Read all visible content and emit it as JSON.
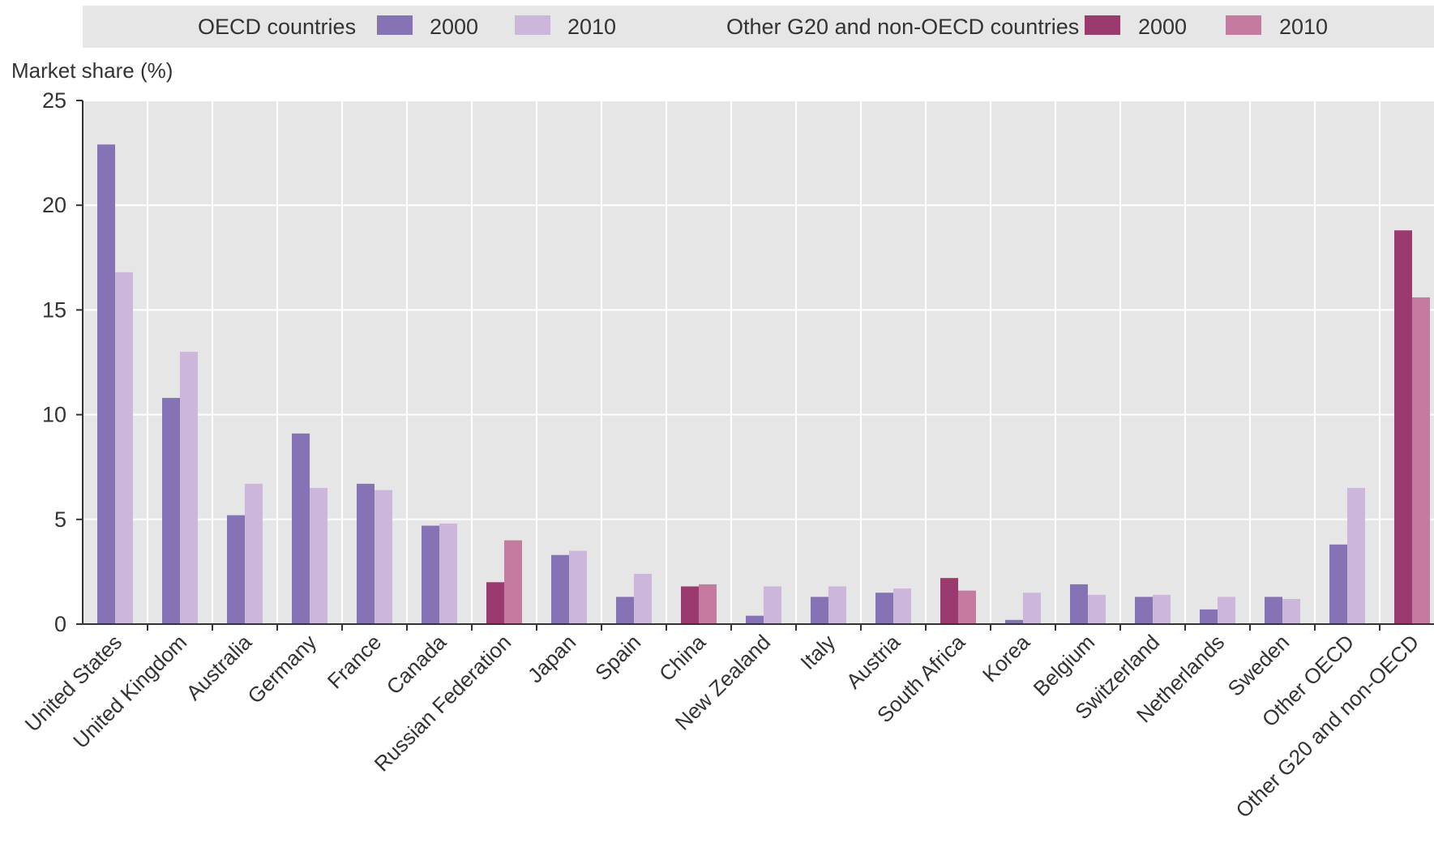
{
  "chart_data": {
    "type": "bar",
    "ylabel": "Market share (%)",
    "ylim": [
      0,
      25
    ],
    "yticks": [
      0,
      5,
      10,
      15,
      20,
      25
    ],
    "grid": true,
    "legend": {
      "placement": "top",
      "groups": [
        {
          "label": "OECD countries",
          "entries": [
            {
              "label": "2000",
              "color": "#8673b6"
            },
            {
              "label": "2010",
              "color": "#cdb6dc"
            }
          ]
        },
        {
          "label": "Other G20 and non-OECD countries",
          "entries": [
            {
              "label": "2000",
              "color": "#9a3a6e"
            },
            {
              "label": "2010",
              "color": "#c57a9f"
            }
          ]
        }
      ]
    },
    "categories": [
      "United States",
      "United Kingdom",
      "Australia",
      "Germany",
      "France",
      "Canada",
      "Russian Federation",
      "Japan",
      "Spain",
      "China",
      "New Zealand",
      "Italy",
      "Austria",
      "South Africa",
      "Korea",
      "Belgium",
      "Switzerland",
      "Netherlands",
      "Sweden",
      "Other OECD",
      "Other G20 and non-OECD"
    ],
    "group": [
      "OECD",
      "OECD",
      "OECD",
      "OECD",
      "OECD",
      "OECD",
      "Other",
      "OECD",
      "OECD",
      "Other",
      "OECD",
      "OECD",
      "OECD",
      "Other",
      "OECD",
      "OECD",
      "OECD",
      "OECD",
      "OECD",
      "OECD",
      "Other"
    ],
    "series": [
      {
        "values": [
          22.9,
          10.8,
          5.2,
          9.1,
          6.7,
          4.7,
          2.0,
          3.3,
          1.3,
          1.8,
          0.4,
          1.3,
          1.5,
          2.2,
          0.2,
          1.9,
          1.3,
          0.7,
          1.3,
          3.8,
          18.8
        ]
      },
      {
        "values": [
          16.8,
          13.0,
          6.7,
          6.5,
          6.4,
          4.8,
          4.0,
          3.5,
          2.4,
          1.9,
          1.8,
          1.8,
          1.7,
          1.6,
          1.5,
          1.4,
          1.4,
          1.3,
          1.2,
          6.5,
          15.6
        ]
      }
    ]
  }
}
